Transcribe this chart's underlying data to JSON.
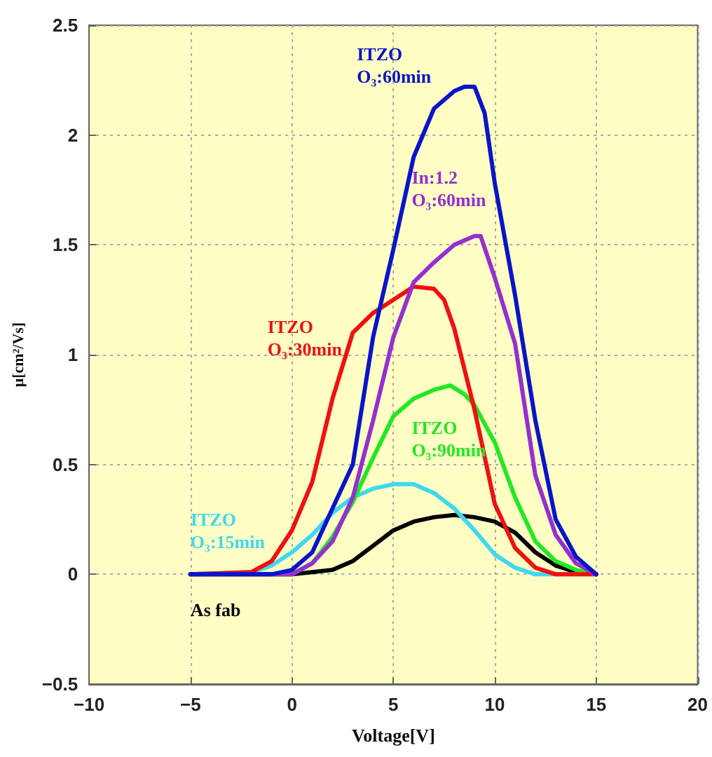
{
  "chart_data": {
    "type": "line",
    "xlabel": "Voltage[V]",
    "ylabel": "μ[cm²/Vs]",
    "xlim": [
      -10,
      20
    ],
    "xticks": [
      -10,
      -5,
      0,
      5,
      10,
      15,
      20
    ],
    "ylim": [
      -0.5,
      2.5
    ],
    "yticks": [
      -0.5,
      0,
      0.5,
      1,
      1.5,
      2,
      2.5
    ],
    "grid": true,
    "legend": false,
    "marker": "none",
    "line_style": "solid",
    "series": [
      {
        "name": "ITZO\nO₃:60min",
        "color": "#0a14c8",
        "x": [
          -5,
          -1,
          0,
          1,
          2,
          3,
          4,
          5,
          6,
          7,
          8,
          8.5,
          9,
          9.5,
          10,
          11,
          12,
          13,
          14,
          15
        ],
        "values": [
          0,
          0,
          0.02,
          0.1,
          0.3,
          0.5,
          1.08,
          1.48,
          1.9,
          2.12,
          2.2,
          2.22,
          2.22,
          2.1,
          1.78,
          1.27,
          0.7,
          0.25,
          0.08,
          0
        ]
      },
      {
        "name": "In:1.2\nO₃:60min",
        "color": "#9430d0",
        "x": [
          -5,
          0,
          1,
          2,
          3,
          4,
          5,
          6,
          7,
          8,
          9,
          9.3,
          10,
          11,
          12,
          13,
          14,
          15
        ],
        "values": [
          0,
          0,
          0.05,
          0.15,
          0.35,
          0.7,
          1.08,
          1.33,
          1.42,
          1.5,
          1.54,
          1.54,
          1.35,
          1.05,
          0.45,
          0.18,
          0.05,
          0
        ]
      },
      {
        "name": "ITZO\nO₃:30min",
        "color": "#f01010",
        "x": [
          -5,
          -2,
          -1,
          0,
          1,
          2,
          3,
          4,
          5,
          6,
          7,
          7.5,
          8,
          9,
          10,
          11,
          12,
          13,
          15
        ],
        "values": [
          0,
          0.01,
          0.06,
          0.2,
          0.42,
          0.8,
          1.1,
          1.19,
          1.25,
          1.31,
          1.3,
          1.25,
          1.12,
          0.75,
          0.32,
          0.12,
          0.03,
          0,
          0
        ]
      },
      {
        "name": "ITZO\nO₃:90min",
        "color": "#22e822",
        "x": [
          -5,
          0,
          1,
          2,
          3,
          4,
          5,
          6,
          7,
          7.8,
          8.5,
          9,
          10,
          11,
          12,
          13,
          14,
          15
        ],
        "values": [
          0,
          0,
          0.05,
          0.17,
          0.33,
          0.53,
          0.72,
          0.8,
          0.84,
          0.86,
          0.82,
          0.77,
          0.6,
          0.35,
          0.15,
          0.06,
          0.02,
          0
        ]
      },
      {
        "name": "ITZO\nO₃:15min",
        "color": "#40d8f0",
        "x": [
          -5,
          -2,
          -1,
          0,
          1,
          2,
          3,
          4,
          5,
          6,
          7,
          8,
          9,
          10,
          11,
          12,
          15
        ],
        "values": [
          0,
          0.01,
          0.04,
          0.1,
          0.18,
          0.28,
          0.35,
          0.39,
          0.41,
          0.41,
          0.37,
          0.3,
          0.2,
          0.09,
          0.03,
          0,
          0
        ]
      },
      {
        "name": "As fab",
        "color": "#000000",
        "x": [
          -5,
          0,
          1,
          2,
          3,
          4,
          5,
          6,
          7,
          8,
          9,
          10,
          11,
          12,
          13,
          14,
          15
        ],
        "values": [
          0,
          0,
          0.01,
          0.02,
          0.06,
          0.13,
          0.2,
          0.24,
          0.26,
          0.27,
          0.26,
          0.24,
          0.19,
          0.1,
          0.04,
          0.01,
          0
        ]
      }
    ]
  }
}
